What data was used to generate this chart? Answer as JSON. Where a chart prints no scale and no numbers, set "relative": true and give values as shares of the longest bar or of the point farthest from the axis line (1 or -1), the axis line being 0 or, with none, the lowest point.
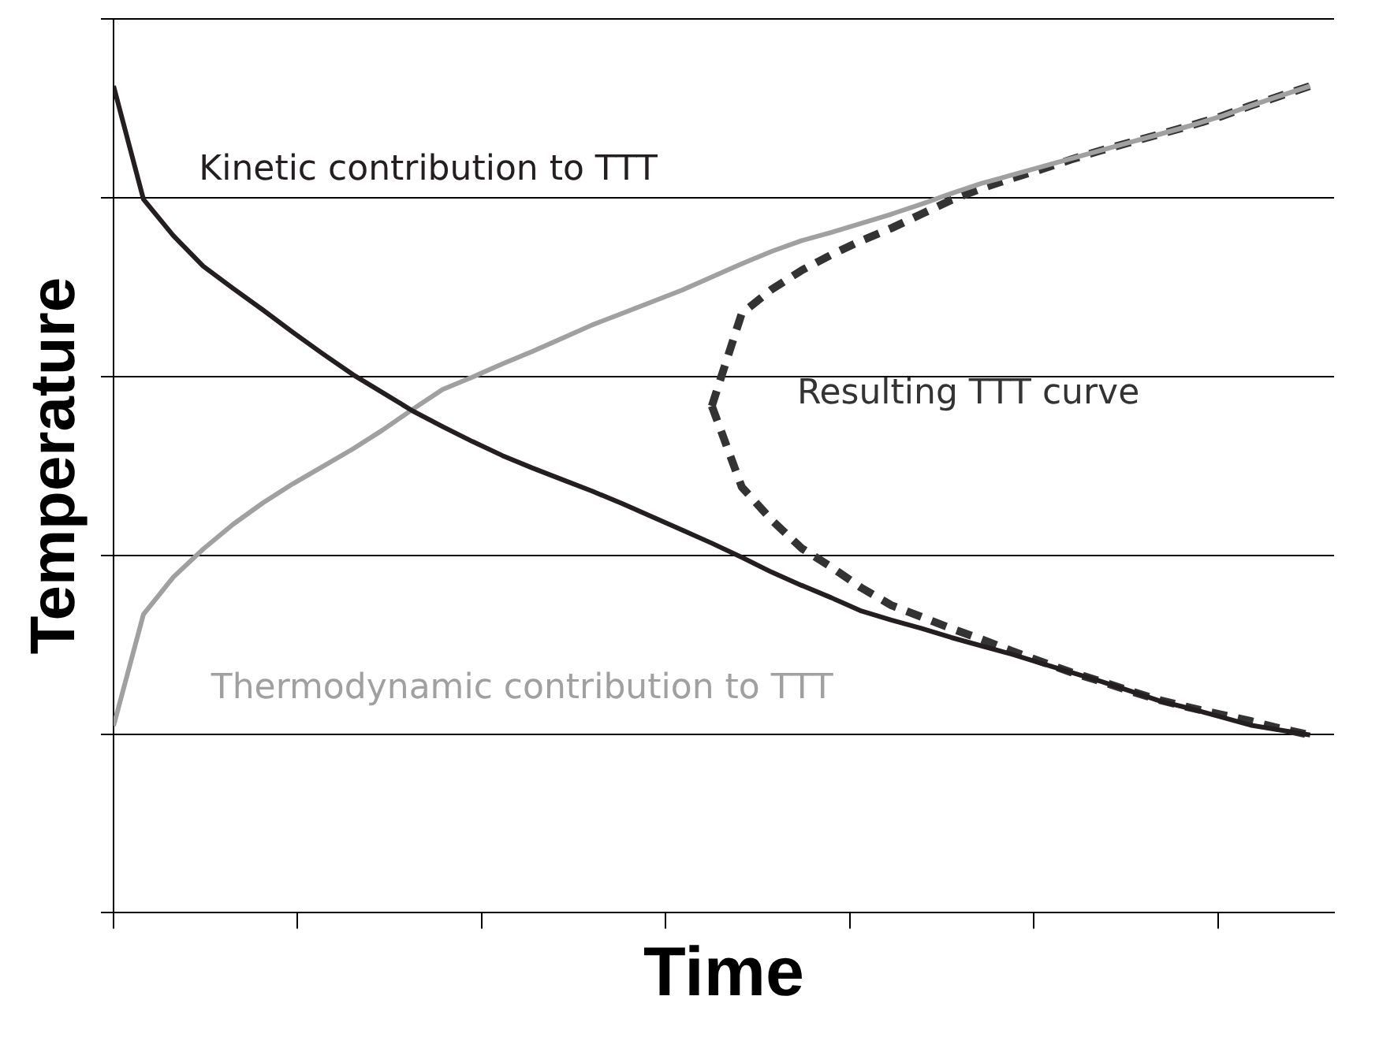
{
  "chart_data": {
    "type": "line",
    "xlabel": "Time",
    "ylabel": "Temperature",
    "relative": true,
    "grid": "y",
    "legend": false,
    "marker": "none",
    "categories": [
      null,
      null,
      null,
      null,
      null,
      null,
      null,
      null,
      null,
      null,
      null,
      null,
      null,
      null,
      null,
      null,
      null,
      null,
      null,
      null,
      null,
      null,
      null,
      null,
      null,
      null,
      null,
      null,
      null,
      null,
      null,
      null,
      null,
      null,
      null,
      null,
      null,
      null,
      null,
      null,
      null
    ],
    "series": [
      {
        "name": "Kinetic contribution to TTT",
        "color": "#231f20",
        "line_style": "solid",
        "values": [
          1,
          0.863,
          0.819,
          0.782,
          0.755,
          0.729,
          0.702,
          0.676,
          0.651,
          0.629,
          0.607,
          0.588,
          0.57,
          0.553,
          0.538,
          0.524,
          0.51,
          0.495,
          0.479,
          0.463,
          0.447,
          0.43,
          0.412,
          0.396,
          0.381,
          0.365,
          0.354,
          0.344,
          0.333,
          0.323,
          0.313,
          0.302,
          0.291,
          0.28,
          0.268,
          0.256,
          0.247,
          0.237,
          0.227,
          0.221,
          0.215
        ]
      },
      {
        "name": "Thermodynamic contribution to TTT",
        "color": "#a0a0a0",
        "line_style": "solid",
        "values": [
          0.226,
          0.361,
          0.406,
          0.44,
          0.47,
          0.496,
          0.519,
          0.54,
          0.561,
          0.584,
          0.609,
          0.633,
          0.648,
          0.664,
          0.679,
          0.695,
          0.711,
          0.725,
          0.739,
          0.753,
          0.769,
          0.785,
          0.8,
          0.813,
          0.823,
          0.834,
          0.845,
          0.857,
          0.87,
          0.882,
          0.892,
          0.902,
          0.912,
          0.922,
          0.932,
          0.942,
          0.952,
          0.963,
          0.976,
          0.988,
          1
        ]
      },
      {
        "name": "Resulting TTT curve",
        "color": "#333333",
        "line_style": "dashed",
        "values": [
          null,
          null,
          null,
          null,
          null,
          null,
          null,
          null,
          null,
          null,
          null,
          null,
          null,
          null,
          null,
          null,
          null,
          null,
          null,
          null,
          0.613,
          0.725,
          0.754,
          0.777,
          0.796,
          0.813,
          0.828,
          0.845,
          0.862,
          0.876,
          0.888,
          0.899,
          0.911,
          0.922,
          0.932,
          0.942,
          0.952,
          0.963,
          0.976,
          0.988,
          1
        ]
      },
      {
        "color": "#333333",
        "line_style": "dashed",
        "values": [
          null,
          null,
          null,
          null,
          null,
          null,
          null,
          null,
          null,
          null,
          null,
          null,
          null,
          null,
          null,
          null,
          null,
          null,
          null,
          null,
          0.613,
          0.515,
          0.475,
          0.441,
          0.418,
          0.393,
          0.372,
          0.358,
          0.344,
          0.331,
          0.317,
          0.304,
          0.291,
          0.28,
          0.268,
          0.257,
          0.248,
          0.24,
          0.232,
          0.223,
          0.215
        ]
      }
    ]
  }
}
